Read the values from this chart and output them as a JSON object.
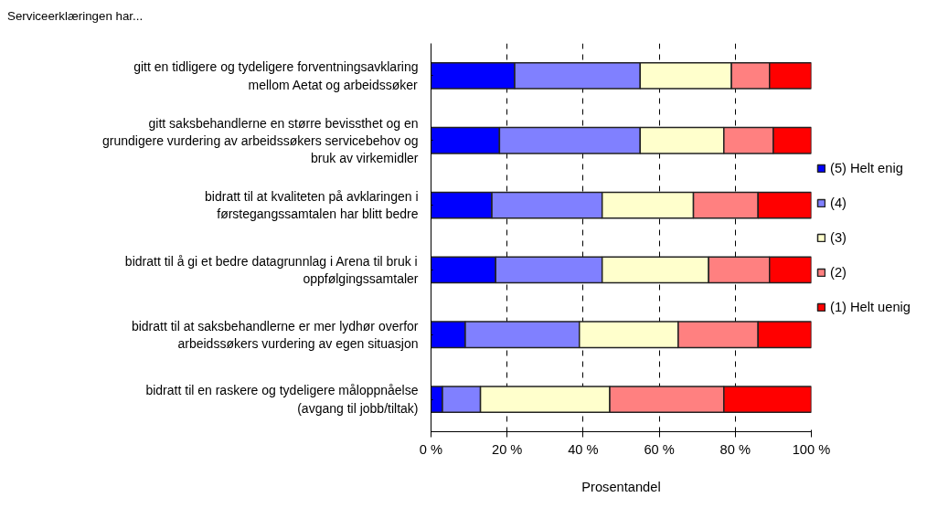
{
  "chart_data": {
    "type": "bar",
    "orientation": "horizontal",
    "stacked": true,
    "title": "Serviceerklæringen har...",
    "xlabel": "Prosentandel",
    "categories": [
      "gitt en tidligere og tydeligere forventningsavklaring\nmellom Aetat og arbeidssøker",
      "gitt saksbehandlerne en større bevissthet og en\ngrundigere vurdering av arbeidssøkers servicebehov og\nbruk av virkemidler",
      "bidratt til at kvaliteten på avklaringen i\nførstegangssamtalen har blitt bedre",
      "bidratt til å gi et bedre datagrunnlag i Arena til bruk i\noppfølgingssamtaler",
      "bidratt til at saksbehandlerne er mer lydhør overfor\narbeidssøkers vurdering av egen situasjon",
      "bidratt til en raskere og tydeligere måloppnåelse\n(avgang til jobb/tiltak)"
    ],
    "series": [
      {
        "name": "(5) Helt enig",
        "color": "#0000ff",
        "values": [
          22,
          18,
          16,
          17,
          9,
          3
        ]
      },
      {
        "name": "(4)",
        "color": "#8080ff",
        "values": [
          33,
          37,
          29,
          28,
          30,
          10
        ]
      },
      {
        "name": "(3)",
        "color": "#ffffcc",
        "values": [
          24,
          22,
          24,
          28,
          26,
          34
        ]
      },
      {
        "name": "(2)",
        "color": "#ff8080",
        "values": [
          10,
          13,
          17,
          16,
          21,
          30
        ]
      },
      {
        "name": "(1) Helt uenig",
        "color": "#ff0000",
        "values": [
          11,
          10,
          14,
          11,
          14,
          23
        ]
      }
    ],
    "xlim": [
      0,
      100
    ],
    "xticks": [
      {
        "value": 0,
        "label": "0 %"
      },
      {
        "value": 20,
        "label": "20 %"
      },
      {
        "value": 40,
        "label": "40 %"
      },
      {
        "value": 60,
        "label": "60 %"
      },
      {
        "value": 80,
        "label": "80 %"
      },
      {
        "value": 100,
        "label": "100 %"
      }
    ],
    "grid": "x",
    "legend": "right"
  }
}
